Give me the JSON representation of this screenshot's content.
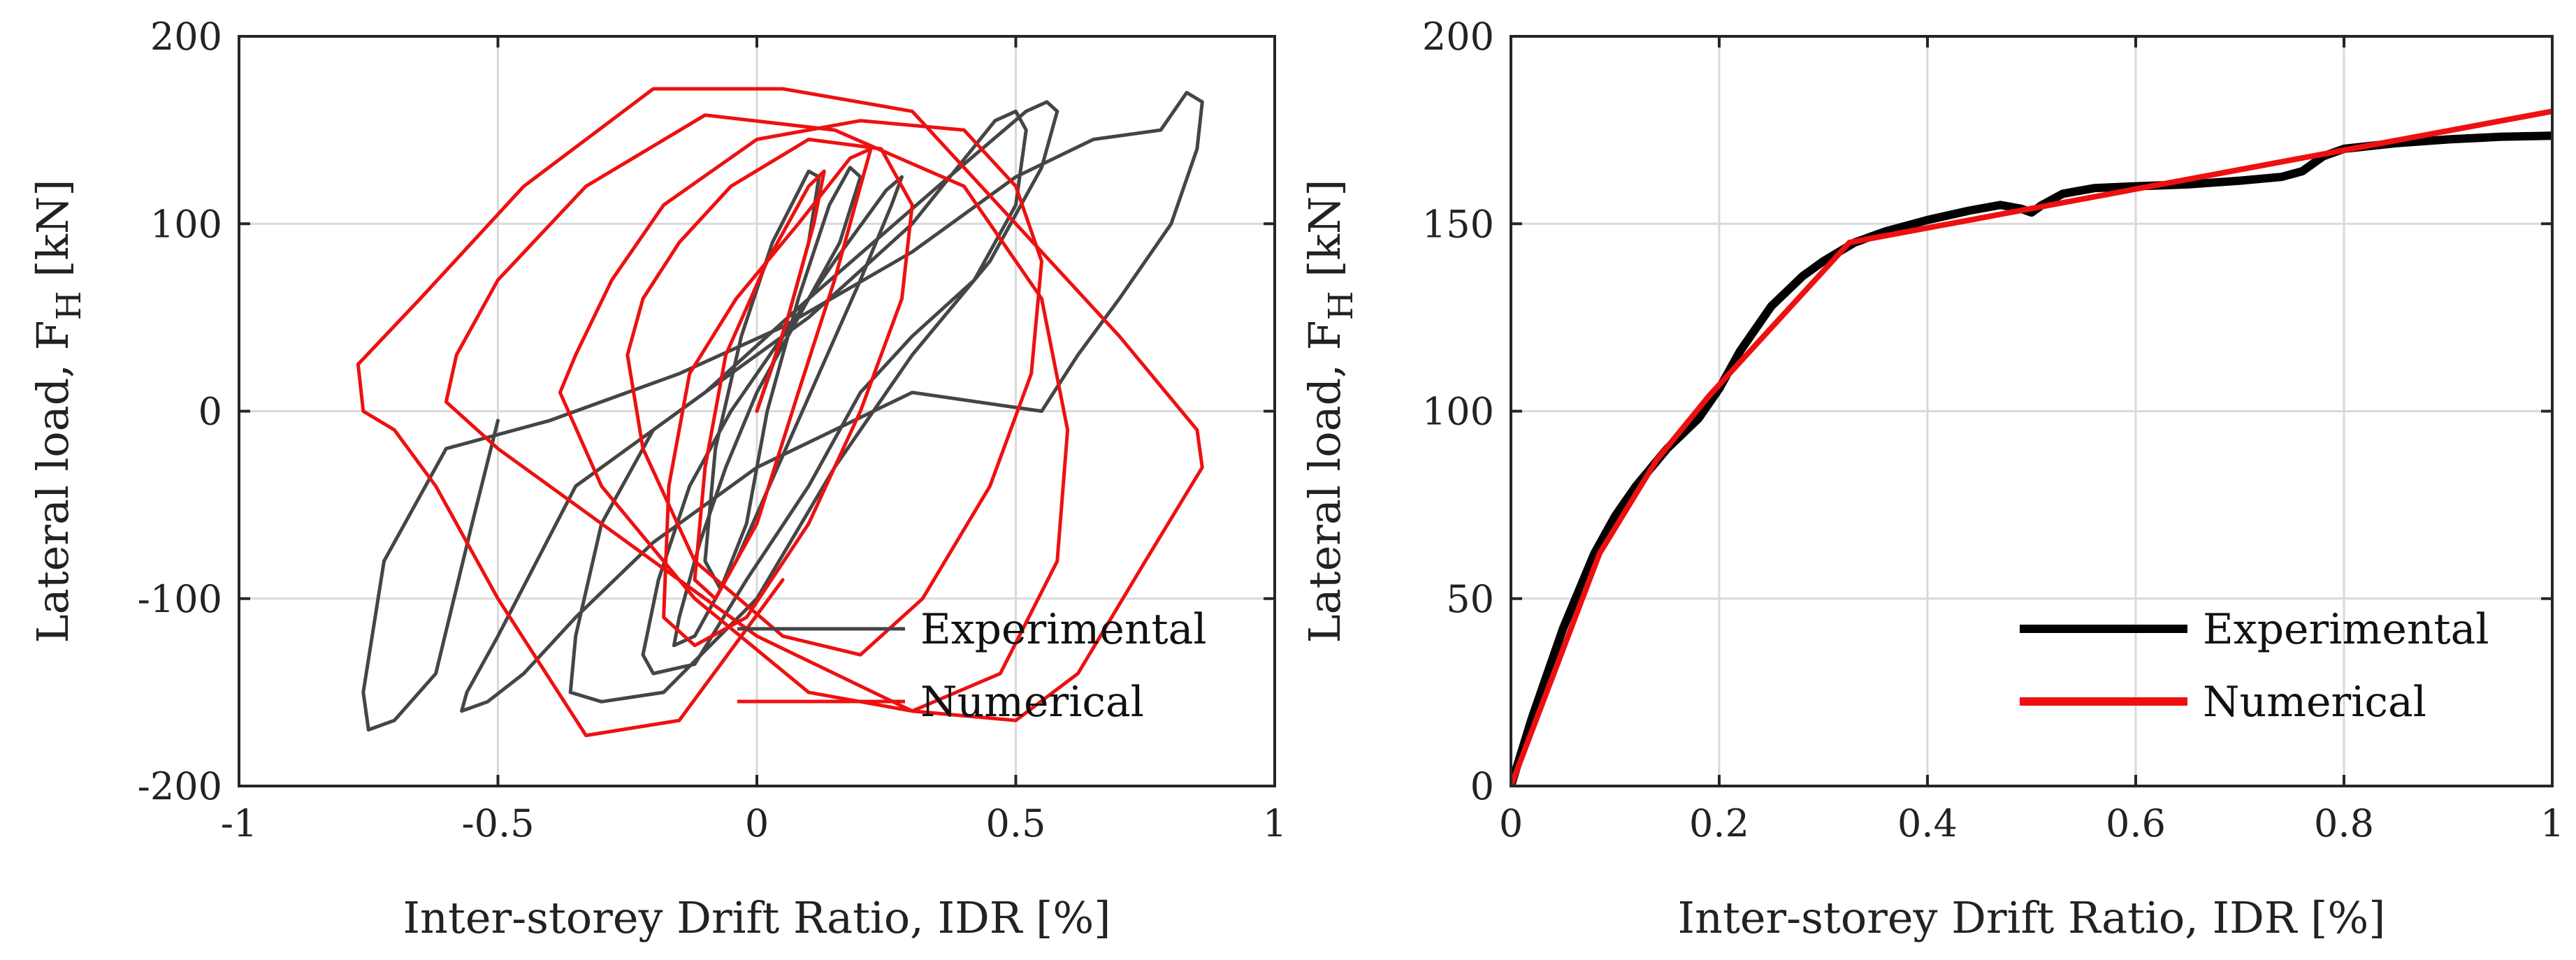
{
  "chart_data": [
    {
      "type": "line",
      "title": "",
      "xlabel": "Inter-storey Drift Ratio, IDR [%]",
      "ylabel": "Lateral load, F",
      "ylabel_sub": "H",
      "ylabel_unit": " [kN]",
      "xlim": [
        -1,
        1
      ],
      "ylim": [
        -200,
        200
      ],
      "xticks": [
        "-1",
        "-0.5",
        "0",
        "0.5",
        "1"
      ],
      "yticks": [
        "-200",
        "-100",
        "0",
        "100",
        "200"
      ],
      "grid": true,
      "legend_position": "bottom-right",
      "series": [
        {
          "name": "Experimental",
          "color": "#454545",
          "x": [
            0,
            0.05,
            0.1,
            0.12,
            0.1,
            0.03,
            -0.03,
            -0.08,
            -0.1,
            -0.07,
            -0.02,
            0.02,
            0.08,
            0.14,
            0.18,
            0.2,
            0.16,
            0.08,
            0,
            -0.06,
            -0.11,
            -0.15,
            -0.16,
            -0.12,
            -0.04,
            0.04,
            0.12,
            0.2,
            0.26,
            0.28,
            0.25,
            0.15,
            0.05,
            -0.05,
            -0.13,
            -0.19,
            -0.22,
            -0.2,
            -0.12,
            -0.02,
            0.1,
            0.2,
            0.3,
            0.42,
            0.5,
            0.52,
            0.5,
            0.46,
            0.3,
            0.1,
            -0.05,
            -0.2,
            -0.3,
            -0.35,
            -0.36,
            -0.3,
            -0.18,
            0,
            0.15,
            0.3,
            0.45,
            0.55,
            0.58,
            0.56,
            0.52,
            0.35,
            0.1,
            -0.1,
            -0.35,
            -0.5,
            -0.56,
            -0.57,
            -0.52,
            -0.45,
            -0.35,
            -0.2,
            0,
            0.3,
            0.55,
            0.62,
            0.7,
            0.8,
            0.85,
            0.86,
            0.83,
            0.78,
            0.65,
            0.5,
            0.3,
            0.05,
            -0.15,
            -0.4,
            -0.6,
            -0.72,
            -0.76,
            -0.75,
            -0.7,
            -0.62,
            -0.55,
            -0.5
          ],
          "y": [
            0,
            40,
            90,
            125,
            128,
            90,
            40,
            -20,
            -80,
            -95,
            -60,
            0,
            60,
            110,
            130,
            125,
            90,
            50,
            10,
            -30,
            -70,
            -110,
            -125,
            -120,
            -80,
            -30,
            20,
            70,
            110,
            125,
            118,
            80,
            40,
            0,
            -40,
            -90,
            -130,
            -140,
            -135,
            -90,
            -40,
            10,
            40,
            70,
            110,
            150,
            160,
            155,
            100,
            50,
            20,
            -10,
            -60,
            -120,
            -150,
            -155,
            -150,
            -100,
            -30,
            30,
            80,
            130,
            160,
            165,
            160,
            120,
            60,
            10,
            -40,
            -120,
            -150,
            -160,
            -155,
            -140,
            -110,
            -70,
            -30,
            10,
            0,
            30,
            60,
            100,
            140,
            165,
            170,
            150,
            145,
            125,
            85,
            45,
            20,
            -5,
            -20,
            -80,
            -150,
            -170,
            -165,
            -140,
            -60,
            -5
          ]
        },
        {
          "name": "Numerical",
          "color": "#ee1010",
          "x": [
            0,
            0.06,
            0.11,
            0.13,
            0.1,
            0.02,
            -0.06,
            -0.1,
            -0.12,
            -0.08,
            0,
            0.08,
            0.15,
            0.2,
            0.22,
            0.18,
            0.08,
            -0.04,
            -0.13,
            -0.17,
            -0.18,
            -0.12,
            -0.02,
            0.1,
            0.2,
            0.28,
            0.3,
            0.24,
            0.1,
            -0.05,
            -0.15,
            -0.22,
            -0.25,
            -0.22,
            -0.12,
            0.05,
            0.2,
            0.32,
            0.45,
            0.53,
            0.55,
            0.5,
            0.4,
            0.2,
            0,
            -0.18,
            -0.28,
            -0.35,
            -0.38,
            -0.3,
            -0.12,
            0.1,
            0.3,
            0.47,
            0.58,
            0.6,
            0.55,
            0.4,
            0.15,
            -0.1,
            -0.33,
            -0.5,
            -0.58,
            -0.6,
            -0.5,
            -0.3,
            0,
            0.3,
            0.5,
            0.62,
            0.75,
            0.86,
            0.85,
            0.7,
            0.5,
            0.3,
            0.05,
            -0.2,
            -0.45,
            -0.65,
            -0.77,
            -0.76,
            -0.7,
            -0.62,
            -0.5,
            -0.33,
            -0.15,
            0.05
          ],
          "y": [
            0,
            50,
            100,
            128,
            120,
            80,
            30,
            -30,
            -90,
            -100,
            -60,
            10,
            70,
            120,
            140,
            135,
            100,
            60,
            20,
            -40,
            -110,
            -125,
            -110,
            -60,
            0,
            60,
            110,
            140,
            145,
            120,
            90,
            60,
            30,
            -20,
            -80,
            -120,
            -130,
            -100,
            -40,
            20,
            80,
            120,
            150,
            155,
            145,
            110,
            70,
            30,
            10,
            -40,
            -100,
            -150,
            -160,
            -140,
            -80,
            -10,
            60,
            120,
            150,
            158,
            120,
            70,
            30,
            5,
            -20,
            -60,
            -120,
            -160,
            -165,
            -140,
            -80,
            -30,
            -10,
            40,
            100,
            160,
            172,
            172,
            120,
            60,
            25,
            0,
            -10,
            -40,
            -100,
            -173,
            -165,
            -90
          ]
        }
      ]
    },
    {
      "type": "line",
      "title": "",
      "xlabel": "Inter-storey Drift Ratio, IDR [%]",
      "ylabel": "Lateral load, F",
      "ylabel_sub": "H",
      "ylabel_unit": " [kN]",
      "xlim": [
        0,
        1
      ],
      "ylim": [
        0,
        200
      ],
      "xticks": [
        "0",
        "0.2",
        "0.4",
        "0.6",
        "0.8",
        "1"
      ],
      "yticks": [
        "0",
        "50",
        "100",
        "150",
        "200"
      ],
      "grid": true,
      "legend_position": "bottom-right",
      "series": [
        {
          "name": "Experimental",
          "color": "#000000",
          "x": [
            0,
            0.02,
            0.05,
            0.08,
            0.1,
            0.12,
            0.15,
            0.18,
            0.2,
            0.22,
            0.25,
            0.28,
            0.3,
            0.33,
            0.36,
            0.4,
            0.44,
            0.47,
            0.49,
            0.5,
            0.51,
            0.53,
            0.56,
            0.6,
            0.65,
            0.7,
            0.74,
            0.76,
            0.78,
            0.8,
            0.85,
            0.9,
            0.95,
            1.0
          ],
          "y": [
            0,
            18,
            42,
            62,
            72,
            80,
            90,
            98,
            106,
            116,
            128,
            136,
            140,
            145,
            148,
            151,
            153.5,
            155,
            154,
            153,
            155,
            158,
            159.5,
            160,
            160.5,
            161.5,
            162.5,
            164,
            168,
            170,
            171.5,
            172.5,
            173.2,
            173.5
          ]
        },
        {
          "name": "Numerical",
          "color": "#ee1010",
          "x": [
            0,
            0.085,
            0.14,
            0.19,
            0.325,
            1.0
          ],
          "y": [
            0,
            62,
            87,
            104,
            145,
            180
          ]
        }
      ]
    }
  ]
}
